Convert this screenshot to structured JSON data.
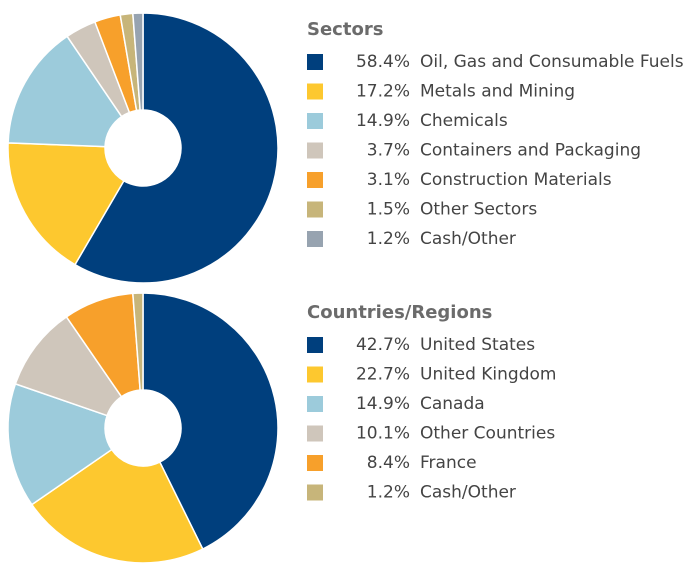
{
  "chart_data": [
    {
      "type": "pie",
      "title": "Sectors",
      "categories": [
        "Oil, Gas and Consumable Fuels",
        "Metals and Mining",
        "Chemicals",
        "Containers and Packaging",
        "Construction Materials",
        "Other Sectors",
        "Cash/Other"
      ],
      "values": [
        58.4,
        17.2,
        14.9,
        3.7,
        3.1,
        1.5,
        1.2
      ],
      "value_labels": [
        "58.4%",
        "17.2%",
        "14.9%",
        "3.7%",
        "3.1%",
        "1.5%",
        "1.2%"
      ],
      "colors": [
        "#003f7d",
        "#fdc82f",
        "#9ccbdb",
        "#cfc6bb",
        "#f7a02b",
        "#c7b57a",
        "#97a3b0"
      ]
    },
    {
      "type": "pie",
      "title": "Countries/Regions",
      "categories": [
        "United States",
        "United Kingdom",
        "Canada",
        "Other Countries",
        "France",
        "Cash/Other"
      ],
      "values": [
        42.7,
        22.7,
        14.9,
        10.1,
        8.4,
        1.2
      ],
      "value_labels": [
        "42.7%",
        "22.7%",
        "14.9%",
        "10.1%",
        "8.4%",
        "1.2%"
      ],
      "colors": [
        "#003f7d",
        "#fdc82f",
        "#9ccbdb",
        "#cfc6bb",
        "#f7a02b",
        "#c7b57a"
      ]
    }
  ]
}
